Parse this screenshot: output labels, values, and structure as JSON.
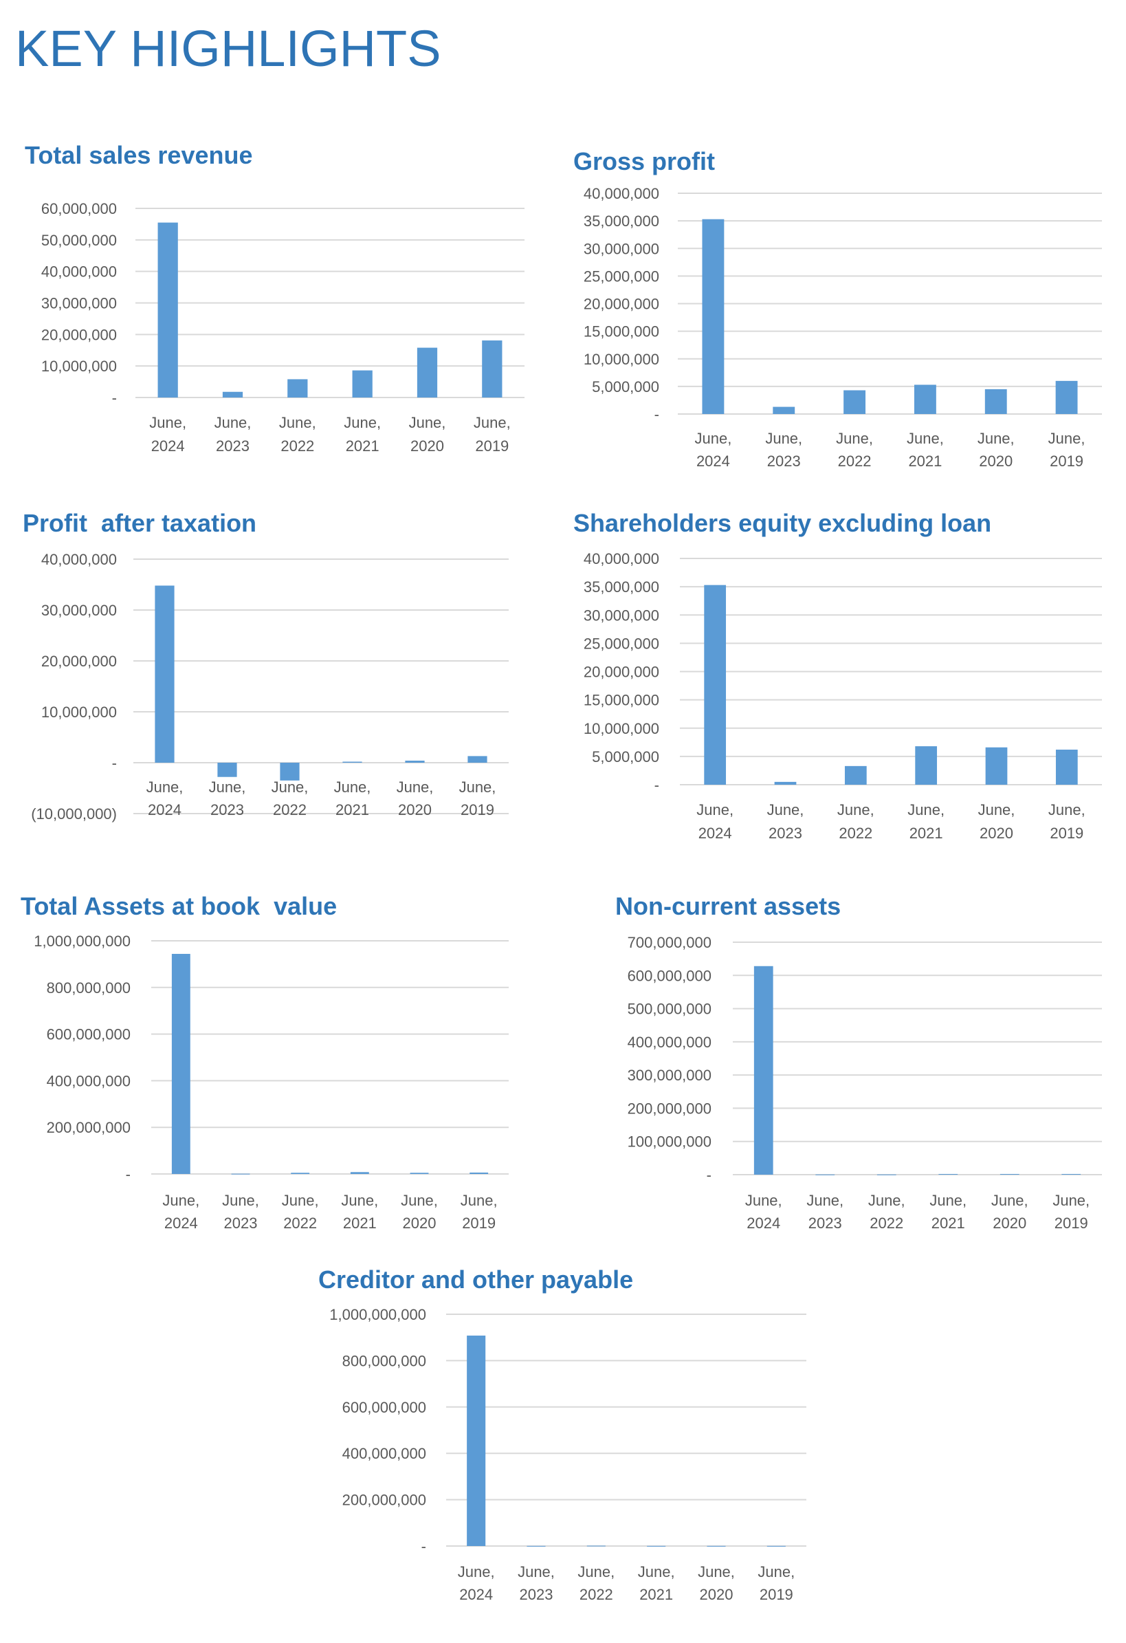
{
  "page_title": "KEY HIGHLIGHTS",
  "colors": {
    "bar": "#5B9BD5",
    "title": "#2E75B6",
    "grid": "#D9D9D9",
    "tick": "#595959"
  },
  "chart_data": [
    {
      "type": "bar",
      "title": "Total sales revenue",
      "categories": [
        [
          "June,",
          "2024"
        ],
        [
          "June,",
          "2023"
        ],
        [
          "June,",
          "2022"
        ],
        [
          "June,",
          "2021"
        ],
        [
          "June,",
          "2020"
        ],
        [
          "June,",
          "2019"
        ]
      ],
      "values": [
        55500000,
        1800000,
        5800000,
        8600000,
        15800000,
        18100000
      ],
      "ylim": [
        0,
        60000000
      ],
      "yticks": [
        0,
        10000000,
        20000000,
        30000000,
        40000000,
        50000000,
        60000000
      ],
      "ytick_labels": [
        "-",
        "10,000,000",
        "20,000,000",
        "30,000,000",
        "40,000,000",
        "50,000,000",
        "60,000,000"
      ],
      "grid": true
    },
    {
      "type": "bar",
      "title": "Gross profit",
      "categories": [
        [
          "June,",
          "2024"
        ],
        [
          "June,",
          "2023"
        ],
        [
          "June,",
          "2022"
        ],
        [
          "June,",
          "2021"
        ],
        [
          "June,",
          "2020"
        ],
        [
          "June,",
          "2019"
        ]
      ],
      "values": [
        35300000,
        1300000,
        4300000,
        5300000,
        4500000,
        6000000
      ],
      "ylim": [
        0,
        40000000
      ],
      "yticks": [
        0,
        5000000,
        10000000,
        15000000,
        20000000,
        25000000,
        30000000,
        35000000,
        40000000
      ],
      "ytick_labels": [
        "-",
        "5,000,000",
        "10,000,000",
        "15,000,000",
        "20,000,000",
        "25,000,000",
        "30,000,000",
        "35,000,000",
        "40,000,000"
      ],
      "grid": true
    },
    {
      "type": "bar",
      "title": "Profit  after taxation",
      "categories": [
        [
          "June,",
          "2024"
        ],
        [
          "June,",
          "2023"
        ],
        [
          "June,",
          "2022"
        ],
        [
          "June,",
          "2021"
        ],
        [
          "June,",
          "2020"
        ],
        [
          "June,",
          "2019"
        ]
      ],
      "values": [
        34800000,
        -2800000,
        -3500000,
        200000,
        400000,
        1300000
      ],
      "ylim": [
        -10000000,
        40000000
      ],
      "yticks": [
        -10000000,
        0,
        10000000,
        20000000,
        30000000,
        40000000
      ],
      "ytick_labels": [
        "(10,000,000)",
        "-",
        "10,000,000",
        "20,000,000",
        "30,000,000",
        "40,000,000"
      ],
      "grid": true
    },
    {
      "type": "bar",
      "title": "Shareholders equity excluding loan",
      "categories": [
        [
          "June,",
          "2024"
        ],
        [
          "June,",
          "2023"
        ],
        [
          "June,",
          "2022"
        ],
        [
          "June,",
          "2021"
        ],
        [
          "June,",
          "2020"
        ],
        [
          "June,",
          "2019"
        ]
      ],
      "values": [
        35300000,
        500000,
        3300000,
        6800000,
        6600000,
        6200000
      ],
      "ylim": [
        0,
        40000000
      ],
      "yticks": [
        0,
        5000000,
        10000000,
        15000000,
        20000000,
        25000000,
        30000000,
        35000000,
        40000000
      ],
      "ytick_labels": [
        "-",
        "5,000,000",
        "10,000,000",
        "15,000,000",
        "20,000,000",
        "25,000,000",
        "30,000,000",
        "35,000,000",
        "40,000,000"
      ],
      "grid": true
    },
    {
      "type": "bar",
      "title": "Total Assets at book  value",
      "categories": [
        [
          "June,",
          "2024"
        ],
        [
          "June,",
          "2023"
        ],
        [
          "June,",
          "2022"
        ],
        [
          "June,",
          "2021"
        ],
        [
          "June,",
          "2020"
        ],
        [
          "June,",
          "2019"
        ]
      ],
      "values": [
        944000000,
        1000000,
        5000000,
        8000000,
        5000000,
        6000000
      ],
      "ylim": [
        0,
        1000000000
      ],
      "yticks": [
        0,
        200000000,
        400000000,
        600000000,
        800000000,
        1000000000
      ],
      "ytick_labels": [
        "-",
        "200,000,000",
        "400,000,000",
        "600,000,000",
        "800,000,000",
        "1,000,000,000"
      ],
      "grid": true
    },
    {
      "type": "bar",
      "title": "Non-current assets",
      "categories": [
        [
          "June,",
          "2024"
        ],
        [
          "June,",
          "2023"
        ],
        [
          "June,",
          "2022"
        ],
        [
          "June,",
          "2021"
        ],
        [
          "June,",
          "2020"
        ],
        [
          "June,",
          "2019"
        ]
      ],
      "values": [
        628000000,
        500000,
        500000,
        2000000,
        2000000,
        2000000
      ],
      "ylim": [
        0,
        700000000
      ],
      "yticks": [
        0,
        100000000,
        200000000,
        300000000,
        400000000,
        500000000,
        600000000,
        700000000
      ],
      "ytick_labels": [
        "-",
        "100,000,000",
        "200,000,000",
        "300,000,000",
        "400,000,000",
        "500,000,000",
        "600,000,000",
        "700,000,000"
      ],
      "grid": true
    },
    {
      "type": "bar",
      "title": "Creditor and other payable",
      "categories": [
        [
          "June,",
          "2024"
        ],
        [
          "June,",
          "2023"
        ],
        [
          "June,",
          "2022"
        ],
        [
          "June,",
          "2021"
        ],
        [
          "June,",
          "2020"
        ],
        [
          "June,",
          "2019"
        ]
      ],
      "values": [
        908000000,
        500000,
        1500000,
        500000,
        500000,
        500000
      ],
      "ylim": [
        0,
        1000000000
      ],
      "yticks": [
        0,
        200000000,
        400000000,
        600000000,
        800000000,
        1000000000
      ],
      "ytick_labels": [
        "-",
        "200,000,000",
        "400,000,000",
        "600,000,000",
        "800,000,000",
        "1,000,000,000"
      ],
      "grid": true
    }
  ]
}
